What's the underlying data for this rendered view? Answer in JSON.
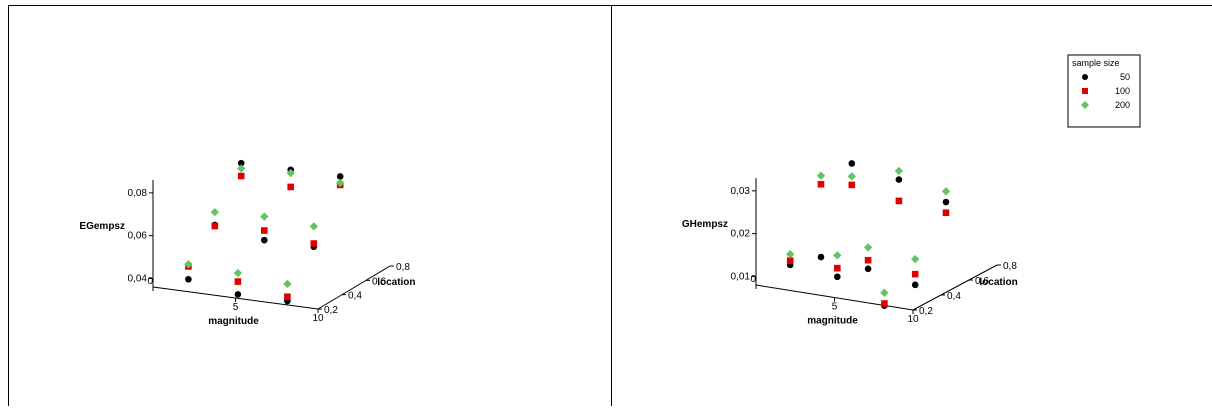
{
  "chart_data": [
    {
      "type": "scatter",
      "title": "",
      "zlabel": "EGempsz",
      "xlabel": "magnitude",
      "ylabel": "location",
      "x_ticks": [
        "0",
        "5",
        "10"
      ],
      "y_ticks": [
        "0,2",
        "0,4",
        "0,6",
        "0,8"
      ],
      "z_ticks": [
        "0,04",
        "0,06",
        "0,08"
      ],
      "xlim": [
        0,
        10
      ],
      "ylim": [
        0.2,
        0.8
      ],
      "zlim": [
        0.04,
        0.08
      ],
      "legend": "none",
      "series": [
        {
          "name": "50",
          "color": "#000000",
          "marker": "circle",
          "points": [
            {
              "x": 2,
              "y": 0.3,
              "z": 0.041
            },
            {
              "x": 2,
              "y": 0.5,
              "z": 0.059
            },
            {
              "x": 2,
              "y": 0.7,
              "z": 0.0805
            },
            {
              "x": 5,
              "y": 0.3,
              "z": 0.037
            },
            {
              "x": 5,
              "y": 0.5,
              "z": 0.055
            },
            {
              "x": 5,
              "y": 0.7,
              "z": 0.0805
            },
            {
              "x": 8,
              "y": 0.3,
              "z": 0.037
            },
            {
              "x": 8,
              "y": 0.5,
              "z": 0.055
            },
            {
              "x": 8,
              "y": 0.7,
              "z": 0.0805
            }
          ]
        },
        {
          "name": "100",
          "color": "#e00000",
          "marker": "square",
          "points": [
            {
              "x": 2,
              "y": 0.3,
              "z": 0.047
            },
            {
              "x": 2,
              "y": 0.5,
              "z": 0.0585
            },
            {
              "x": 2,
              "y": 0.7,
              "z": 0.0745
            },
            {
              "x": 5,
              "y": 0.3,
              "z": 0.043
            },
            {
              "x": 5,
              "y": 0.5,
              "z": 0.0595
            },
            {
              "x": 5,
              "y": 0.7,
              "z": 0.0725
            },
            {
              "x": 8,
              "y": 0.3,
              "z": 0.039
            },
            {
              "x": 8,
              "y": 0.5,
              "z": 0.0565
            },
            {
              "x": 8,
              "y": 0.7,
              "z": 0.0765
            }
          ]
        },
        {
          "name": "200",
          "color": "#66c266",
          "marker": "diamond",
          "points": [
            {
              "x": 2,
              "y": 0.3,
              "z": 0.048
            },
            {
              "x": 2,
              "y": 0.5,
              "z": 0.065
            },
            {
              "x": 2,
              "y": 0.7,
              "z": 0.078
            },
            {
              "x": 5,
              "y": 0.3,
              "z": 0.047
            },
            {
              "x": 5,
              "y": 0.5,
              "z": 0.066
            },
            {
              "x": 5,
              "y": 0.7,
              "z": 0.079
            },
            {
              "x": 8,
              "y": 0.3,
              "z": 0.045
            },
            {
              "x": 8,
              "y": 0.5,
              "z": 0.0645
            },
            {
              "x": 8,
              "y": 0.7,
              "z": 0.0775
            }
          ]
        }
      ]
    },
    {
      "type": "scatter",
      "title": "",
      "zlabel": "GHempsz",
      "xlabel": "magnitude",
      "ylabel": "location",
      "x_ticks": [
        "0",
        "5",
        "10"
      ],
      "y_ticks": [
        "0,2",
        "0,4",
        "0,6",
        "0,8"
      ],
      "z_ticks": [
        "0,01",
        "0,02",
        "0,03"
      ],
      "xlim": [
        0,
        10
      ],
      "ylim": [
        0.2,
        0.8
      ],
      "zlim": [
        0.01,
        0.03
      ],
      "legend": "top-right",
      "legend_title": "sample  size",
      "series": [
        {
          "name": "50",
          "color": "#000000",
          "marker": "circle",
          "points": [
            {
              "x": 2,
              "y": 0.3,
              "z": 0.0135
            },
            {
              "x": 2,
              "y": 0.5,
              "z": 0.0115
            },
            {
              "x": 2,
              "y": 0.7,
              "z": 0.0295
            },
            {
              "x": 5,
              "y": 0.3,
              "z": 0.0125
            },
            {
              "x": 5,
              "y": 0.5,
              "z": 0.0105
            },
            {
              "x": 5,
              "y": 0.7,
              "z": 0.0275
            },
            {
              "x": 8,
              "y": 0.3,
              "z": 0.0075
            },
            {
              "x": 8,
              "y": 0.5,
              "z": 0.0085
            },
            {
              "x": 8,
              "y": 0.7,
              "z": 0.024
            }
          ]
        },
        {
          "name": "100",
          "color": "#e00000",
          "marker": "square",
          "points": [
            {
              "x": 2,
              "y": 0.3,
              "z": 0.0145
            },
            {
              "x": 2,
              "y": 0.5,
              "z": 0.0285
            },
            {
              "x": 2,
              "y": 0.7,
              "z": 0.0245
            },
            {
              "x": 5,
              "y": 0.3,
              "z": 0.0145
            },
            {
              "x": 5,
              "y": 0.5,
              "z": 0.0125
            },
            {
              "x": 5,
              "y": 0.7,
              "z": 0.0225
            },
            {
              "x": 8,
              "y": 0.3,
              "z": 0.008
            },
            {
              "x": 8,
              "y": 0.5,
              "z": 0.011
            },
            {
              "x": 8,
              "y": 0.7,
              "z": 0.0215
            }
          ]
        },
        {
          "name": "200",
          "color": "#66c266",
          "marker": "diamond",
          "points": [
            {
              "x": 2,
              "y": 0.3,
              "z": 0.016
            },
            {
              "x": 2,
              "y": 0.5,
              "z": 0.0305
            },
            {
              "x": 2,
              "y": 0.7,
              "z": 0.0265
            },
            {
              "x": 5,
              "y": 0.3,
              "z": 0.0175
            },
            {
              "x": 5,
              "y": 0.5,
              "z": 0.0155
            },
            {
              "x": 5,
              "y": 0.7,
              "z": 0.0295
            },
            {
              "x": 8,
              "y": 0.3,
              "z": 0.0105
            },
            {
              "x": 8,
              "y": 0.5,
              "z": 0.0145
            },
            {
              "x": 8,
              "y": 0.7,
              "z": 0.0265
            }
          ]
        }
      ]
    }
  ]
}
